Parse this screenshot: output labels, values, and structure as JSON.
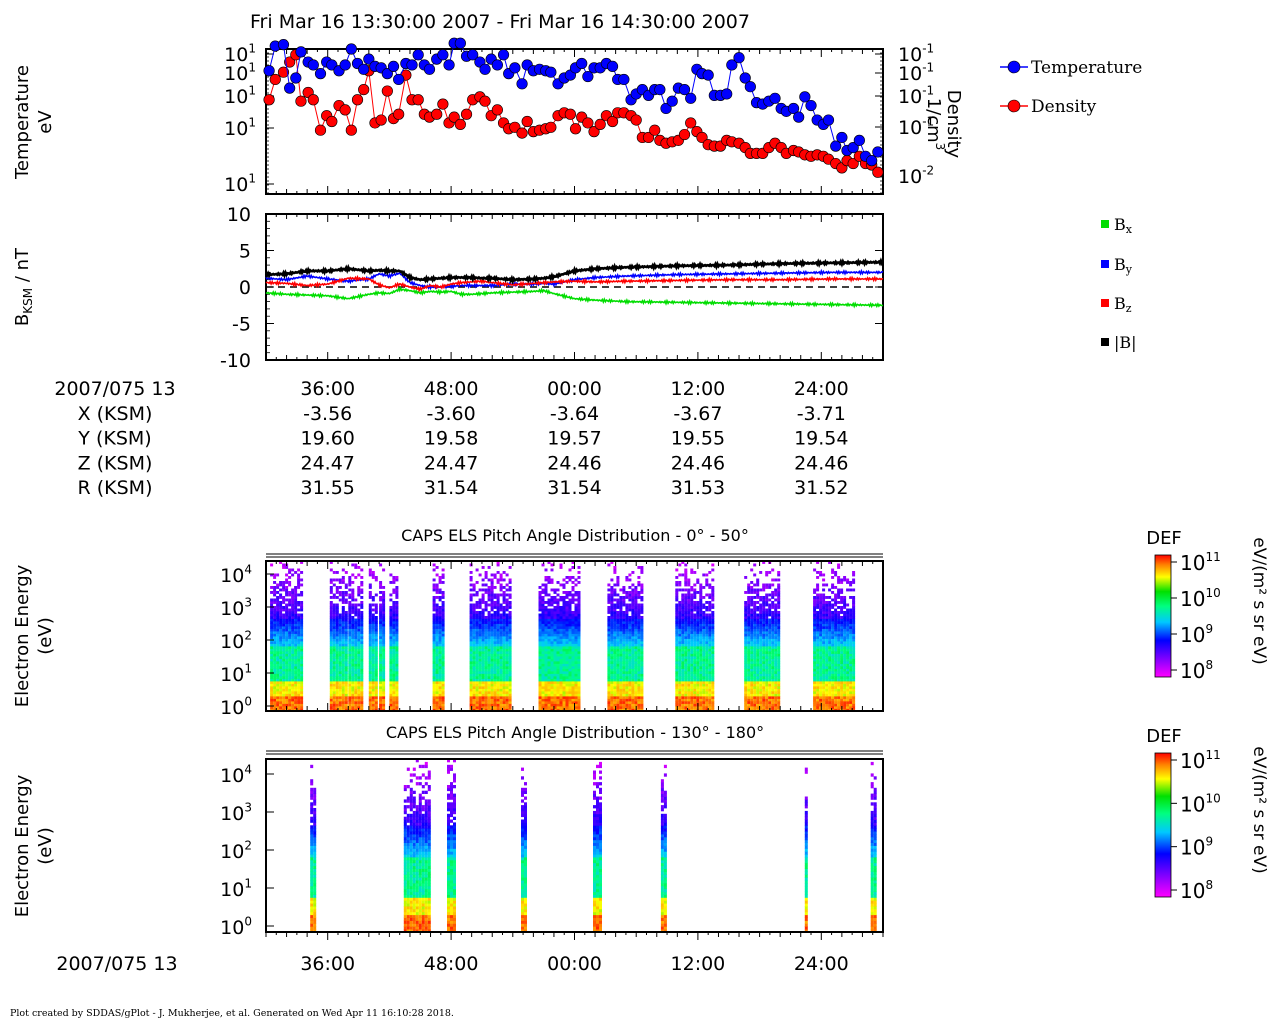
{
  "header": {
    "title": "Fri Mar 16 13:30:00 2007 - Fri Mar 16 14:30:00 2007"
  },
  "footer": {
    "credit": "Plot created by SDDAS/gPlot - J. Mukherjee, et al.  Generated on Wed Apr 11 16:10:28 2018."
  },
  "colors": {
    "temperature": "#0000ff",
    "density": "#ff0000",
    "bx": "#00dd00",
    "by": "#0000ff",
    "bz": "#ff0000",
    "btot": "#000000"
  },
  "chart_data": [
    {
      "type": "scatter",
      "ylabel_left": [
        "Temperature",
        "eV"
      ],
      "ylabel_right": [
        "Density",
        "1/cm",
        "3"
      ],
      "y_ticks_left": [
        "10",
        "10",
        "10",
        "10",
        "10"
      ],
      "y_ticks_left_exp": [
        "1",
        "1",
        "1",
        "1",
        "1"
      ],
      "y_ticks_right": [
        "10",
        "10",
        "10",
        "10",
        "10"
      ],
      "y_ticks_right_exp": [
        "-1",
        "-1",
        "-1",
        "-1",
        "-2"
      ],
      "legend": [
        "Temperature",
        "Density"
      ],
      "xlim_minutes": [
        0,
        60
      ],
      "series": [
        {
          "name": "Temperature",
          "x": [
            0.3,
            0.9,
            1.7,
            2.3,
            2.9,
            3.4,
            4.1,
            4.6,
            5.3,
            5.9,
            6.4,
            7.1,
            7.7,
            8.3,
            8.9,
            9.5,
            10.0,
            10.6,
            11.2,
            11.8,
            12.4,
            12.9,
            13.6,
            14.2,
            14.8,
            15.4,
            15.9,
            16.6,
            17.2,
            17.8,
            18.3,
            18.9,
            19.5,
            20.1,
            20.8,
            21.3,
            21.9,
            22.5,
            23.1,
            23.6,
            24.2,
            24.9,
            25.4,
            26.0,
            26.6,
            27.2,
            27.7,
            28.4,
            29.0,
            29.6,
            30.1,
            30.7,
            31.3,
            31.9,
            32.5,
            33.1,
            33.7,
            34.2,
            34.8,
            35.5,
            36.0,
            36.6,
            37.2,
            37.8,
            38.3,
            38.9,
            39.5,
            40.1,
            40.7,
            41.3,
            41.9,
            42.4,
            43.0,
            43.6,
            44.2,
            44.8,
            45.3,
            46.0,
            46.6,
            47.1,
            47.7,
            48.3,
            48.9,
            49.5,
            50.1,
            50.6,
            51.3,
            51.8,
            52.4,
            53.0,
            53.6,
            54.2,
            54.7,
            55.4,
            56.0,
            56.5,
            57.1,
            57.7,
            58.3,
            58.9,
            59.5
          ],
          "y": [
            8.5,
            10.2,
            10.3,
            7.3,
            8.0,
            9.8,
            9.1,
            8.9,
            8.3,
            9.1,
            8.9,
            8.5,
            8.9,
            10.0,
            9.0,
            8.6,
            9.3,
            8.8,
            8.7,
            8.3,
            8.8,
            7.9,
            9.0,
            8.9,
            9.6,
            8.9,
            8.6,
            9.3,
            9.6,
            8.9,
            10.4,
            10.4,
            9.5,
            9.6,
            9.1,
            8.6,
            9.3,
            8.9,
            9.6,
            8.3,
            8.7,
            7.6,
            8.9,
            8.5,
            8.6,
            8.5,
            8.4,
            7.6,
            8.0,
            8.2,
            8.7,
            9.0,
            8.1,
            8.7,
            8.7,
            9.0,
            8.8,
            7.9,
            7.9,
            6.5,
            6.9,
            7.2,
            6.8,
            7.2,
            7.2,
            5.9,
            6.4,
            7.3,
            7.2,
            6.6,
            8.6,
            8.3,
            8.2,
            6.8,
            6.8,
            6.9,
            8.9,
            9.4,
            8.0,
            7.4,
            6.3,
            6.2,
            6.4,
            6.6,
            5.9,
            5.7,
            5.9,
            5.3,
            6.7,
            6.1,
            5.1,
            4.8,
            5.1,
            3.3,
            3.9,
            3.0,
            3.2,
            3.7,
            2.6,
            2.3,
            2.9
          ]
        },
        {
          "name": "Density",
          "x": [
            0.3,
            0.9,
            1.7,
            2.3,
            2.9,
            3.4,
            4.1,
            4.6,
            5.3,
            5.9,
            6.4,
            7.1,
            7.7,
            8.3,
            8.9,
            9.5,
            10.0,
            10.6,
            11.2,
            11.8,
            12.4,
            12.9,
            13.6,
            14.2,
            14.8,
            15.4,
            15.9,
            16.6,
            17.2,
            17.8,
            18.3,
            18.9,
            19.5,
            20.1,
            20.8,
            21.3,
            21.9,
            22.5,
            23.1,
            23.6,
            24.2,
            24.9,
            25.4,
            26.0,
            26.6,
            27.2,
            27.7,
            28.4,
            29.0,
            29.6,
            30.1,
            30.7,
            31.3,
            31.9,
            32.5,
            33.1,
            33.7,
            34.2,
            34.8,
            35.5,
            36.0,
            36.6,
            37.2,
            37.8,
            38.3,
            38.9,
            39.5,
            40.1,
            40.7,
            41.3,
            41.9,
            42.4,
            43.0,
            43.6,
            44.2,
            44.8,
            45.3,
            46.0,
            46.6,
            47.1,
            47.7,
            48.3,
            48.9,
            49.5,
            50.1,
            50.6,
            51.3,
            51.8,
            52.4,
            53.0,
            53.6,
            54.2,
            54.7,
            55.4,
            56.0,
            56.5,
            57.1,
            57.7,
            58.3,
            58.9,
            59.5
          ],
          "y": [
            6.5,
            7.9,
            8.4,
            9.1,
            9.6,
            6.4,
            7.0,
            6.5,
            4.4,
            5.4,
            5.0,
            6.1,
            5.8,
            4.4,
            6.5,
            7.2,
            8.5,
            4.9,
            5.1,
            7.1,
            5.2,
            5.5,
            8.2,
            6.5,
            6.5,
            5.5,
            5.3,
            5.5,
            6.2,
            4.9,
            5.3,
            4.8,
            5.5,
            6.5,
            6.7,
            6.4,
            5.4,
            5.8,
            4.9,
            4.5,
            4.6,
            4.2,
            5.0,
            4.3,
            4.4,
            4.5,
            4.6,
            5.4,
            5.6,
            5.5,
            4.5,
            5.3,
            4.9,
            4.3,
            4.8,
            5.4,
            5.0,
            5.6,
            5.6,
            5.4,
            5.1,
            3.9,
            3.9,
            4.4,
            3.7,
            3.5,
            3.6,
            3.7,
            4.1,
            4.9,
            4.3,
            3.9,
            3.4,
            3.3,
            3.3,
            3.7,
            3.6,
            3.5,
            3.2,
            2.8,
            2.8,
            2.8,
            3.2,
            3.5,
            3.2,
            2.8,
            3.0,
            2.9,
            2.7,
            2.6,
            2.7,
            2.6,
            2.4,
            2.1,
            1.8,
            2.3,
            2.1,
            2.6,
            2.1,
            2.0,
            1.5
          ]
        }
      ]
    },
    {
      "type": "line",
      "ylabel": "B",
      "ylabel_sub": "KSM",
      "ylabel_unit": " / nT",
      "ylim": [
        -10,
        10
      ],
      "y_ticks": [
        "10",
        "5",
        "0",
        "-5",
        "-10"
      ],
      "legend": [
        "B",
        "B",
        "B",
        "|B|"
      ],
      "legend_sub": [
        "x",
        "y",
        "z",
        ""
      ],
      "xlim_minutes": [
        0,
        60
      ],
      "x": [
        0,
        2,
        4,
        6,
        8,
        10,
        11,
        12,
        13,
        14,
        15,
        16,
        17,
        18,
        19,
        20,
        21,
        22,
        24,
        26,
        27,
        28,
        30,
        32,
        35,
        40,
        45,
        50,
        55,
        60
      ],
      "series": [
        {
          "name": "Bx",
          "values": [
            -0.8,
            -1.0,
            -1.1,
            -1.2,
            -1.6,
            -1.0,
            -0.8,
            -0.9,
            -0.3,
            -0.5,
            -0.8,
            -0.6,
            -0.7,
            -0.6,
            -1.0,
            -1.0,
            -0.9,
            -0.8,
            -0.7,
            -0.6,
            -0.5,
            -0.9,
            -1.6,
            -1.8,
            -2.0,
            -2.1,
            -2.2,
            -2.3,
            -2.4,
            -2.5
          ]
        },
        {
          "name": "By",
          "values": [
            1.2,
            1.0,
            1.5,
            1.1,
            0.8,
            1.1,
            1.8,
            1.5,
            1.9,
            0.6,
            0.2,
            0.0,
            0.0,
            0.1,
            0.2,
            0.2,
            0.2,
            0.2,
            0.4,
            0.4,
            0.5,
            0.4,
            1.0,
            1.3,
            1.5,
            1.7,
            1.8,
            1.9,
            2.0,
            2.0
          ]
        },
        {
          "name": "Bz",
          "values": [
            0.6,
            0.5,
            0.2,
            0.4,
            1.2,
            1.1,
            0.3,
            -0.1,
            0.4,
            0.0,
            -0.3,
            0.2,
            0.0,
            0.4,
            0.6,
            0.7,
            0.8,
            0.6,
            0.3,
            0.5,
            0.6,
            0.7,
            0.8,
            0.7,
            0.8,
            0.9,
            1.0,
            1.0,
            1.1,
            1.1
          ]
        },
        {
          "name": "|B|",
          "values": [
            1.7,
            1.8,
            2.2,
            2.2,
            2.5,
            2.2,
            2.3,
            2.2,
            2.2,
            1.3,
            1.0,
            1.1,
            1.2,
            1.3,
            1.3,
            1.3,
            1.2,
            1.2,
            1.0,
            1.1,
            1.2,
            1.4,
            2.2,
            2.5,
            2.7,
            2.9,
            3.0,
            3.2,
            3.3,
            3.4
          ]
        }
      ]
    },
    {
      "type": "heatmap",
      "title": "CAPS ELS Pitch Angle Distribution - 0° - 50°",
      "ylabel": [
        "Electron Energy",
        "(eV)"
      ],
      "y_ticks_base": [
        "10",
        "10",
        "10",
        "10",
        "10"
      ],
      "y_ticks_exp": [
        "4",
        "3",
        "2",
        "1",
        "0"
      ],
      "colorbar_title": "DEF",
      "colorbar_unit": "eV/(m² s sr eV)",
      "colorbar_ticks_base": [
        "10",
        "10",
        "10",
        "10"
      ],
      "colorbar_ticks_exp": [
        "11",
        "10",
        "9",
        "8"
      ],
      "xlim_minutes": [
        0,
        60
      ],
      "data_intervals_minutes": [
        [
          0.4,
          3.5
        ],
        [
          6.2,
          7.8
        ],
        [
          8.0,
          9.2
        ],
        [
          10.0,
          10.8
        ],
        [
          11.0,
          11.5
        ],
        [
          12.0,
          12.8
        ],
        [
          16.2,
          17.2
        ],
        [
          19.8,
          23.8
        ],
        [
          26.5,
          30.5
        ],
        [
          33.2,
          36.5
        ],
        [
          39.8,
          43.5
        ],
        [
          46.5,
          50.0
        ],
        [
          53.2,
          57.0
        ]
      ]
    },
    {
      "type": "heatmap",
      "title": "CAPS ELS Pitch Angle Distribution - 130° - 180°",
      "ylabel": [
        "Electron Energy",
        "(eV)"
      ],
      "y_ticks_base": [
        "10",
        "10",
        "10",
        "10",
        "10"
      ],
      "y_ticks_exp": [
        "4",
        "3",
        "2",
        "1",
        "0"
      ],
      "colorbar_title": "DEF",
      "colorbar_unit": "eV/(m² s sr eV)",
      "colorbar_ticks_base": [
        "10",
        "10",
        "10",
        "10"
      ],
      "colorbar_ticks_exp": [
        "11",
        "10",
        "9",
        "8"
      ],
      "xlim_minutes": [
        0,
        60
      ],
      "data_intervals_minutes": [
        [
          4.3,
          4.8
        ],
        [
          13.4,
          15.8
        ],
        [
          17.6,
          18.4
        ],
        [
          24.8,
          25.3
        ],
        [
          31.8,
          32.4
        ],
        [
          38.4,
          38.8
        ],
        [
          52.4,
          52.6
        ],
        [
          58.8,
          59.3
        ]
      ]
    }
  ],
  "time_axis": {
    "date_label": "2007/075 13",
    "tick_labels": [
      "36:00",
      "48:00",
      "00:00",
      "12:00",
      "24:00"
    ]
  },
  "ephemeris": {
    "rows": [
      {
        "label": "X (KSM)",
        "values": [
          "-3.56",
          "-3.60",
          "-3.64",
          "-3.67",
          "-3.71"
        ]
      },
      {
        "label": "Y (KSM)",
        "values": [
          "19.60",
          "19.58",
          "19.57",
          "19.55",
          "19.54"
        ]
      },
      {
        "label": "Z (KSM)",
        "values": [
          "24.47",
          "24.47",
          "24.46",
          "24.46",
          "24.46"
        ]
      },
      {
        "label": "R (KSM)",
        "values": [
          "31.55",
          "31.54",
          "31.54",
          "31.53",
          "31.52"
        ]
      }
    ]
  }
}
